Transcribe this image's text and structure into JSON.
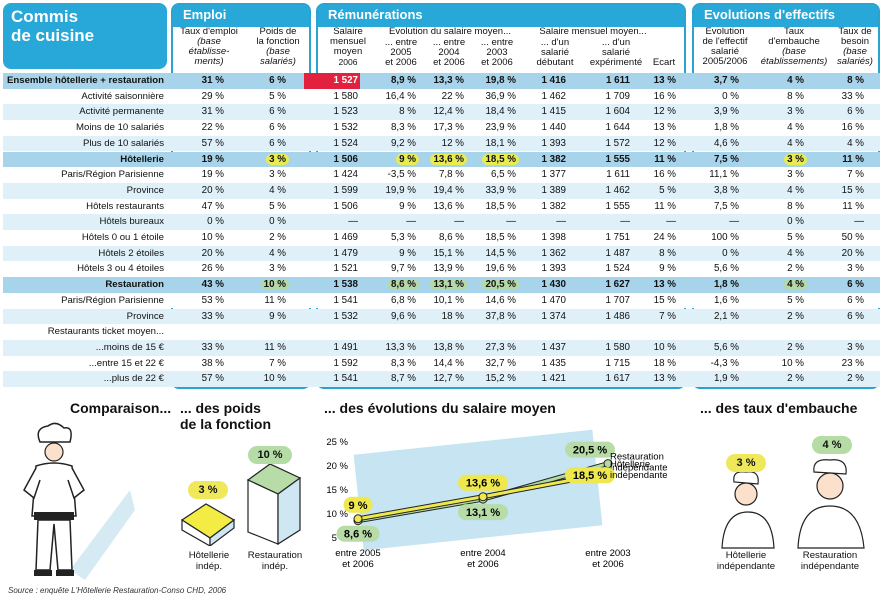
{
  "title": [
    "Commis",
    "de cuisine"
  ],
  "sections": {
    "emploi": "Emploi",
    "remunerations": "Rémunérations",
    "evolutions": "Evolutions d'effectifs"
  },
  "headers": {
    "taux_emploi": [
      "Taux d'emploi"
    ],
    "taux_emploi_sub": [
      "(base",
      "établisse-",
      "ments)"
    ],
    "poids": [
      "Poids de",
      "la fonction"
    ],
    "poids_sub": [
      "(base",
      "salariés)"
    ],
    "salaire": [
      "Salaire",
      "mensuel",
      "moyen"
    ],
    "salaire_year": "2006",
    "evol_title": "Evolution du salaire moyen...",
    "evol_2005": [
      "... entre",
      "2005",
      "et 2006"
    ],
    "evol_2004": [
      "... entre",
      "2004",
      "et 2006"
    ],
    "evol_2003": [
      "... entre",
      "2003",
      "et 2006"
    ],
    "sal_title": "Salaire mensuel moyen...",
    "debutant": [
      "... d'un",
      "salarié",
      "débutant"
    ],
    "experimente": [
      "... d'un",
      "salarié",
      "expérimenté"
    ],
    "ecart": "Ecart",
    "evol_eff": [
      "Evolution",
      "de l'effectif",
      "salarié",
      "2005/2006"
    ],
    "embauche": [
      "Taux",
      "d'embauche"
    ],
    "embauche_sub": [
      "(base",
      "établissements)"
    ],
    "besoin": [
      "Taux de",
      "besoin"
    ],
    "besoin_sub": [
      "(base",
      "salariés)"
    ]
  },
  "rows": [
    {
      "label": "Ensemble hôtellerie + restauration",
      "bold": true,
      "bg": "#a7d4ea",
      "v": [
        "31 %",
        "6 %",
        "1 527",
        "8,9 %",
        "13,3 %",
        "19,8 %",
        "1 416",
        "1 611",
        "13 %",
        "3,7 %",
        "4 %",
        "8 %"
      ]
    },
    {
      "label": "Activité saisonnière",
      "bg": "#fff",
      "v": [
        "29 %",
        "5 %",
        "1 580",
        "16,4 %",
        "22 %",
        "36,9 %",
        "1 462",
        "1 709",
        "16 %",
        "0 %",
        "8 %",
        "33 %"
      ]
    },
    {
      "label": "Activité permanente",
      "bg": "#dff0f8",
      "v": [
        "31 %",
        "6 %",
        "1 523",
        "8 %",
        "12,4 %",
        "18,4 %",
        "1 415",
        "1 604",
        "12 %",
        "3,9 %",
        "3 %",
        "6 %"
      ]
    },
    {
      "label": "Moins de 10 salariés",
      "bg": "#fff",
      "v": [
        "22 %",
        "6 %",
        "1 532",
        "8,3 %",
        "17,3 %",
        "23,9 %",
        "1 440",
        "1 644",
        "13 %",
        "1,8 %",
        "4 %",
        "16 %"
      ]
    },
    {
      "label": "Plus de 10 salariés",
      "bg": "#dff0f8",
      "v": [
        "57 %",
        "6 %",
        "1 524",
        "9,2 %",
        "12 %",
        "18,1 %",
        "1 393",
        "1 572",
        "12 %",
        "4,6 %",
        "4 %",
        "4 %"
      ]
    },
    {
      "label": "Hôtellerie",
      "bold": true,
      "bg": "#a7d4ea",
      "v": [
        "19 %",
        "3 %",
        "1 506",
        "9 %",
        "13,6 %",
        "18,5 %",
        "1 382",
        "1 555",
        "11 %",
        "7,5 %",
        "3 %",
        "11 %"
      ]
    },
    {
      "label": "Paris/Région Parisienne",
      "bg": "#fff",
      "v": [
        "19 %",
        "3 %",
        "1 424",
        "-3,5 %",
        "7,8 %",
        "6,5 %",
        "1 377",
        "1 611",
        "16 %",
        "11,1 %",
        "3 %",
        "7 %"
      ]
    },
    {
      "label": "Province",
      "bg": "#dff0f8",
      "v": [
        "20 %",
        "4 %",
        "1 599",
        "19,9 %",
        "19,4 %",
        "33,9 %",
        "1 389",
        "1 462",
        "5 %",
        "3,8 %",
        "4 %",
        "15 %"
      ]
    },
    {
      "label": "Hôtels restaurants",
      "bg": "#fff",
      "v": [
        "47 %",
        "5 %",
        "1 506",
        "9 %",
        "13,6 %",
        "18,5 %",
        "1 382",
        "1 555",
        "11 %",
        "7,5 %",
        "8 %",
        "11 %"
      ]
    },
    {
      "label": "Hôtels bureaux",
      "bg": "#dff0f8",
      "v": [
        "0 %",
        "0 %",
        "—",
        "—",
        "—",
        "—",
        "—",
        "—",
        "—",
        "—",
        "0 %",
        "—"
      ]
    },
    {
      "label": "Hôtels 0 ou 1 étoile",
      "bg": "#fff",
      "v": [
        "10 %",
        "2 %",
        "1 469",
        "5,3 %",
        "8,6 %",
        "18,5 %",
        "1 398",
        "1 751",
        "24 %",
        "100 %",
        "5 %",
        "50 %"
      ]
    },
    {
      "label": "Hôtels 2 étoiles",
      "bg": "#dff0f8",
      "v": [
        "20 %",
        "4 %",
        "1 479",
        "9 %",
        "15,1 %",
        "14,5 %",
        "1 362",
        "1 487",
        "8 %",
        "0 %",
        "4 %",
        "20 %"
      ]
    },
    {
      "label": "Hôtels 3 ou 4 étoiles",
      "bg": "#fff",
      "v": [
        "26 %",
        "3 %",
        "1 521",
        "9,7 %",
        "13,9 %",
        "19,6 %",
        "1 393",
        "1 524",
        "9 %",
        "5,6 %",
        "2 %",
        "3 %"
      ]
    },
    {
      "label": "Restauration",
      "bold": true,
      "bg": "#a7d4ea",
      "v": [
        "43 %",
        "10 %",
        "1 538",
        "8,6 %",
        "13,1 %",
        "20,5 %",
        "1 430",
        "1 627",
        "13 %",
        "1,8 %",
        "4 %",
        "6 %"
      ]
    },
    {
      "label": "Paris/Région Parisienne",
      "bg": "#fff",
      "v": [
        "53 %",
        "11 %",
        "1 541",
        "6,8 %",
        "10,1 %",
        "14,6 %",
        "1 470",
        "1 707",
        "15 %",
        "1,6 %",
        "5 %",
        "6 %"
      ]
    },
    {
      "label": "Province",
      "bg": "#dff0f8",
      "v": [
        "33 %",
        "9 %",
        "1 532",
        "9,6 %",
        "18 %",
        "37,8 %",
        "1 374",
        "1 486",
        "7 %",
        "2,1 %",
        "2 %",
        "6 %"
      ]
    },
    {
      "label": "Restaurants ticket moyen...",
      "bg": "#fff",
      "v": [
        "",
        "",
        "",
        "",
        "",
        "",
        "",
        "",
        "",
        "",
        "",
        ""
      ]
    },
    {
      "label": "...moins de 15 €",
      "bg": "#dff0f8",
      "v": [
        "33 %",
        "11 %",
        "1 491",
        "13,3 %",
        "13,8 %",
        "27,3 %",
        "1 437",
        "1 580",
        "10 %",
        "5,6 %",
        "2 %",
        "3 %"
      ]
    },
    {
      "label": "...entre 15 et 22 €",
      "bg": "#fff",
      "v": [
        "38 %",
        "7 %",
        "1 592",
        "8,3 %",
        "14,4 %",
        "32,7 %",
        "1 435",
        "1 715",
        "18 %",
        "-4,3 %",
        "10 %",
        "23 %"
      ]
    },
    {
      "label": "...plus de 22 €",
      "bg": "#dff0f8",
      "v": [
        "57 %",
        "10 %",
        "1 541",
        "8,7 %",
        "12,7 %",
        "15,2 %",
        "1 421",
        "1 617",
        "13 %",
        "1,9 %",
        "2 %",
        "2 %"
      ]
    }
  ],
  "bottom": {
    "comparaison": "Comparaison...",
    "poids_title": [
      "... des poids",
      "de la fonction"
    ],
    "evol_title": "... des évolutions du salaire moyen",
    "taux_title": "... des taux d'embauche",
    "hotel_label": [
      "Hôtellerie",
      "indép."
    ],
    "resto_label": [
      "Restauration",
      "indép."
    ],
    "hotel_label2": [
      "Hôtellerie",
      "indépendante"
    ],
    "resto_label2": [
      "Restauration",
      "indépendante"
    ],
    "poids_hotel": "3 %",
    "poids_resto": "10 %",
    "emb_hotel": "3 %",
    "emb_resto": "4 %"
  },
  "chart_data": {
    "type": "line",
    "x": [
      "entre 2005 et 2006",
      "entre 2004 et 2006",
      "entre 2003 et 2006"
    ],
    "ylim": [
      5,
      25
    ],
    "yticks": [
      "5 %",
      "10 %",
      "15 %",
      "20 %",
      "25 %"
    ],
    "series": [
      {
        "name": "Restauration indépendante",
        "values": [
          8.6,
          13.1,
          20.5
        ],
        "labels": [
          "8,6 %",
          "13,1 %",
          "20,5 %"
        ]
      },
      {
        "name": "Hôtellerie indépendante",
        "values": [
          9,
          13.6,
          18.5
        ],
        "labels": [
          "9 %",
          "13,6 %",
          "18,5 %"
        ]
      }
    ]
  },
  "source": "Source : enquête L'Hôtellerie Restauration-Conso CHD, 2006",
  "colors": {
    "accent": "#27a8d8",
    "highlight_yellow": "#e8ec52",
    "highlight_green": "#b5d9a6",
    "red_cell": "#e3213f"
  }
}
